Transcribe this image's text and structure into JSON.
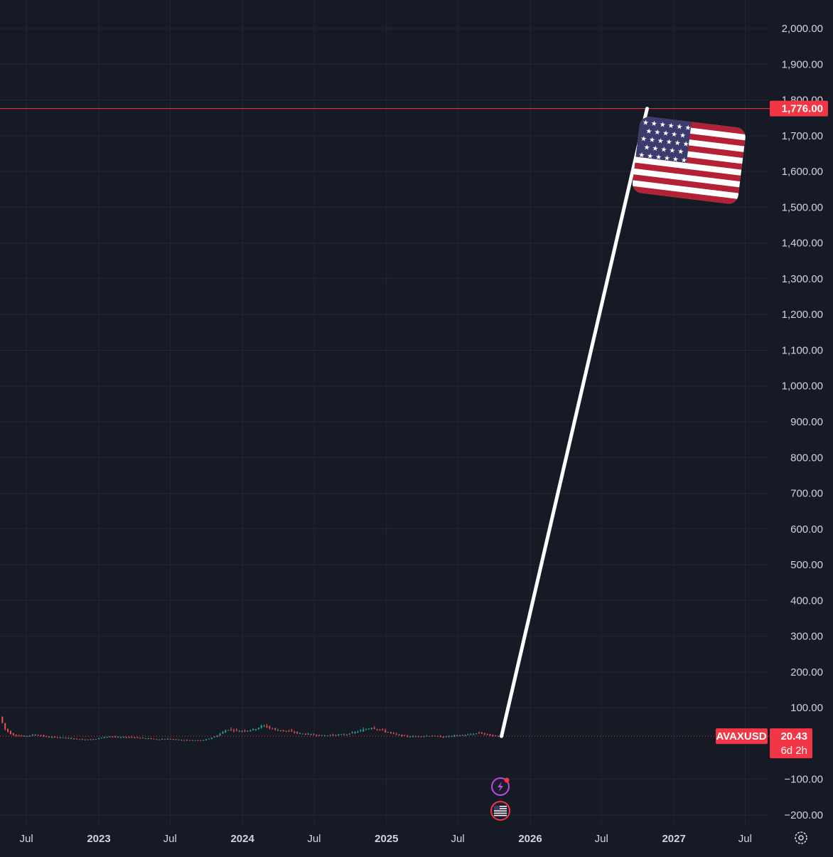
{
  "chart_data": {
    "type": "candlestick",
    "symbol": "AVAXUSD",
    "last_price": "20.43",
    "countdown": "6d 2h",
    "horizontal_line_price": "1,776.00",
    "horizontal_line_value": 1776,
    "ylim": [
      -230,
      2060
    ],
    "y_ticks": [
      {
        "value": 2000,
        "label": "2,000.00"
      },
      {
        "value": 1900,
        "label": "1,900.00"
      },
      {
        "value": 1800,
        "label": "1,800.00"
      },
      {
        "value": 1700,
        "label": "1,700.00"
      },
      {
        "value": 1600,
        "label": "1,600.00"
      },
      {
        "value": 1500,
        "label": "1,500.00"
      },
      {
        "value": 1400,
        "label": "1,400.00"
      },
      {
        "value": 1300,
        "label": "1,300.00"
      },
      {
        "value": 1200,
        "label": "1,200.00"
      },
      {
        "value": 1100,
        "label": "1,100.00"
      },
      {
        "value": 1000,
        "label": "1,000.00"
      },
      {
        "value": 900,
        "label": "900.00"
      },
      {
        "value": 800,
        "label": "800.00"
      },
      {
        "value": 700,
        "label": "700.00"
      },
      {
        "value": 600,
        "label": "600.00"
      },
      {
        "value": 500,
        "label": "500.00"
      },
      {
        "value": 400,
        "label": "400.00"
      },
      {
        "value": 300,
        "label": "300.00"
      },
      {
        "value": 200,
        "label": "200.00"
      },
      {
        "value": 100,
        "label": "100.00"
      },
      {
        "value": -100,
        "label": "−100.00"
      },
      {
        "value": -200,
        "label": "−200.00"
      }
    ],
    "x_domain": [
      "2022-05-01",
      "2027-09-15"
    ],
    "x_ticks": [
      {
        "date": "2022-07-01",
        "label": "Jul",
        "year": false
      },
      {
        "date": "2023-01-01",
        "label": "2023",
        "year": true
      },
      {
        "date": "2023-07-01",
        "label": "Jul",
        "year": false
      },
      {
        "date": "2024-01-01",
        "label": "2024",
        "year": true
      },
      {
        "date": "2024-07-01",
        "label": "Jul",
        "year": false
      },
      {
        "date": "2025-01-01",
        "label": "2025",
        "year": true
      },
      {
        "date": "2025-07-01",
        "label": "Jul",
        "year": false
      },
      {
        "date": "2026-01-01",
        "label": "2026",
        "year": true
      },
      {
        "date": "2026-07-01",
        "label": "Jul",
        "year": false
      },
      {
        "date": "2027-01-01",
        "label": "2027",
        "year": true
      },
      {
        "date": "2027-07-01",
        "label": "Jul",
        "year": false
      }
    ],
    "series": [
      {
        "date": "2022-05-01",
        "value": 75
      },
      {
        "date": "2022-05-15",
        "value": 40
      },
      {
        "date": "2022-06-01",
        "value": 25
      },
      {
        "date": "2022-07-01",
        "value": 20
      },
      {
        "date": "2022-08-01",
        "value": 25
      },
      {
        "date": "2022-09-01",
        "value": 18
      },
      {
        "date": "2022-10-01",
        "value": 17
      },
      {
        "date": "2022-11-01",
        "value": 14
      },
      {
        "date": "2022-12-01",
        "value": 11
      },
      {
        "date": "2023-01-01",
        "value": 13
      },
      {
        "date": "2023-02-01",
        "value": 20
      },
      {
        "date": "2023-03-01",
        "value": 17
      },
      {
        "date": "2023-04-01",
        "value": 18
      },
      {
        "date": "2023-05-01",
        "value": 15
      },
      {
        "date": "2023-06-01",
        "value": 12
      },
      {
        "date": "2023-07-01",
        "value": 13
      },
      {
        "date": "2023-08-01",
        "value": 10
      },
      {
        "date": "2023-09-01",
        "value": 9
      },
      {
        "date": "2023-10-01",
        "value": 9
      },
      {
        "date": "2023-11-01",
        "value": 20
      },
      {
        "date": "2023-12-01",
        "value": 40
      },
      {
        "date": "2024-01-01",
        "value": 35
      },
      {
        "date": "2024-02-01",
        "value": 38
      },
      {
        "date": "2024-03-01",
        "value": 50
      },
      {
        "date": "2024-04-01",
        "value": 38
      },
      {
        "date": "2024-05-01",
        "value": 35
      },
      {
        "date": "2024-06-01",
        "value": 28
      },
      {
        "date": "2024-07-01",
        "value": 25
      },
      {
        "date": "2024-08-01",
        "value": 22
      },
      {
        "date": "2024-09-01",
        "value": 24
      },
      {
        "date": "2024-10-01",
        "value": 26
      },
      {
        "date": "2024-11-01",
        "value": 35
      },
      {
        "date": "2024-12-01",
        "value": 45
      },
      {
        "date": "2025-01-01",
        "value": 35
      },
      {
        "date": "2025-02-01",
        "value": 25
      },
      {
        "date": "2025-03-01",
        "value": 20
      },
      {
        "date": "2025-04-01",
        "value": 20
      },
      {
        "date": "2025-05-01",
        "value": 22
      },
      {
        "date": "2025-06-01",
        "value": 18
      },
      {
        "date": "2025-07-01",
        "value": 22
      },
      {
        "date": "2025-08-01",
        "value": 24
      },
      {
        "date": "2025-09-01",
        "value": 30
      },
      {
        "date": "2025-10-01",
        "value": 22
      },
      {
        "date": "2025-10-20",
        "value": 20.43
      }
    ],
    "annotation_line": {
      "start": {
        "date": "2025-10-20",
        "value": 20.43
      },
      "end": {
        "date": "2026-10-25",
        "value": 1776
      }
    }
  },
  "flag_icon": "us-flag",
  "event_icons": [
    "lightning-icon",
    "us-flag-icon"
  ],
  "settings_icon": "gear-icon",
  "colors": {
    "background": "#161a25",
    "grid": "#232632",
    "text": "#d1d4dc",
    "up": "#26a69a",
    "down": "#ef5350",
    "price_line": "#f23645",
    "tag": "#f23645",
    "pole": "#ffffff",
    "flag_red": "#b22234",
    "flag_blue": "#3c3b6e"
  }
}
